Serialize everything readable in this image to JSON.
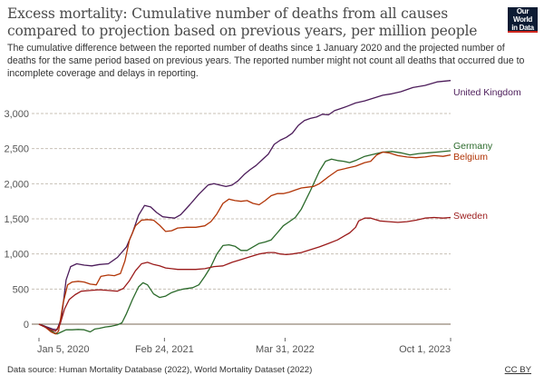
{
  "header": {
    "title": "Excess mortality: Cumulative number of deaths from all causes compared to projection based on previous years, per million people",
    "subtitle": "The cumulative difference between the reported number of deaths since 1 January 2020 and the projected number of deaths for the same period based on previous years. The reported number might not count all deaths that occurred due to incomplete coverage and delays in reporting.",
    "logo_line1": "Our World",
    "logo_line2": "in Data"
  },
  "footer": {
    "source": "Data source: Human Mortality Database (2022), World Mortality Dataset (2022)",
    "license": "CC BY"
  },
  "chart_data": {
    "type": "line",
    "title": "Excess mortality: Cumulative number of deaths from all causes compared to projection based on previous years, per million people",
    "xlabel": "",
    "ylabel": "",
    "x_unit": "days since Jan 5, 2020",
    "xlim": [
      0,
      1365
    ],
    "ylim": [
      -200,
      3000
    ],
    "yticks": [
      0,
      500,
      1000,
      1500,
      2000,
      2500,
      3000
    ],
    "ytick_labels": [
      "0",
      "500",
      "1,000",
      "1,500",
      "2,000",
      "2,500",
      "3,000"
    ],
    "xticks": [
      0,
      416,
      816,
      1365
    ],
    "xtick_labels": [
      "Jan 5, 2020",
      "Feb 24, 2021",
      "Mar 31, 2022",
      "Oct 1, 2023"
    ],
    "grid": "horizontal dashed",
    "legend": "line-end labels at right",
    "series": [
      {
        "name": "United Kingdom",
        "color": "#4c1c5a",
        "points": [
          [
            0,
            0
          ],
          [
            20,
            -30
          ],
          [
            45,
            -70
          ],
          [
            60,
            -80
          ],
          [
            75,
            100
          ],
          [
            90,
            630
          ],
          [
            105,
            820
          ],
          [
            125,
            860
          ],
          [
            150,
            840
          ],
          [
            175,
            830
          ],
          [
            200,
            850
          ],
          [
            230,
            860
          ],
          [
            260,
            950
          ],
          [
            290,
            1100
          ],
          [
            310,
            1300
          ],
          [
            330,
            1550
          ],
          [
            350,
            1690
          ],
          [
            370,
            1670
          ],
          [
            390,
            1590
          ],
          [
            410,
            1530
          ],
          [
            430,
            1520
          ],
          [
            450,
            1510
          ],
          [
            470,
            1560
          ],
          [
            500,
            1700
          ],
          [
            530,
            1850
          ],
          [
            560,
            1980
          ],
          [
            580,
            2000
          ],
          [
            600,
            1980
          ],
          [
            620,
            1960
          ],
          [
            640,
            1980
          ],
          [
            660,
            2040
          ],
          [
            680,
            2130
          ],
          [
            700,
            2200
          ],
          [
            720,
            2260
          ],
          [
            740,
            2340
          ],
          [
            760,
            2420
          ],
          [
            780,
            2560
          ],
          [
            800,
            2620
          ],
          [
            820,
            2660
          ],
          [
            840,
            2720
          ],
          [
            860,
            2830
          ],
          [
            880,
            2900
          ],
          [
            900,
            2930
          ],
          [
            920,
            2950
          ],
          [
            940,
            2990
          ],
          [
            960,
            2980
          ],
          [
            980,
            3040
          ],
          [
            1000,
            3070
          ],
          [
            1020,
            3100
          ],
          [
            1050,
            3150
          ],
          [
            1080,
            3180
          ],
          [
            1110,
            3220
          ],
          [
            1140,
            3260
          ],
          [
            1170,
            3280
          ],
          [
            1200,
            3310
          ],
          [
            1240,
            3370
          ],
          [
            1280,
            3400
          ],
          [
            1320,
            3450
          ],
          [
            1365,
            3470
          ]
        ]
      },
      {
        "name": "Germany",
        "color": "#2b6a2b",
        "points": [
          [
            0,
            0
          ],
          [
            30,
            -60
          ],
          [
            50,
            -120
          ],
          [
            60,
            -140
          ],
          [
            75,
            -110
          ],
          [
            90,
            -80
          ],
          [
            110,
            -80
          ],
          [
            130,
            -75
          ],
          [
            150,
            -80
          ],
          [
            170,
            -110
          ],
          [
            185,
            -70
          ],
          [
            200,
            -60
          ],
          [
            220,
            -40
          ],
          [
            240,
            -30
          ],
          [
            260,
            -10
          ],
          [
            275,
            20
          ],
          [
            290,
            150
          ],
          [
            310,
            350
          ],
          [
            330,
            530
          ],
          [
            345,
            590
          ],
          [
            360,
            560
          ],
          [
            380,
            430
          ],
          [
            400,
            380
          ],
          [
            420,
            400
          ],
          [
            440,
            450
          ],
          [
            460,
            480
          ],
          [
            480,
            500
          ],
          [
            510,
            520
          ],
          [
            530,
            560
          ],
          [
            550,
            680
          ],
          [
            570,
            820
          ],
          [
            590,
            1000
          ],
          [
            610,
            1120
          ],
          [
            630,
            1130
          ],
          [
            650,
            1110
          ],
          [
            670,
            1050
          ],
          [
            690,
            1050
          ],
          [
            710,
            1100
          ],
          [
            730,
            1150
          ],
          [
            750,
            1170
          ],
          [
            770,
            1200
          ],
          [
            790,
            1300
          ],
          [
            810,
            1400
          ],
          [
            830,
            1460
          ],
          [
            850,
            1520
          ],
          [
            870,
            1640
          ],
          [
            900,
            1900
          ],
          [
            930,
            2180
          ],
          [
            950,
            2320
          ],
          [
            970,
            2350
          ],
          [
            990,
            2330
          ],
          [
            1010,
            2320
          ],
          [
            1030,
            2300
          ],
          [
            1050,
            2330
          ],
          [
            1080,
            2390
          ],
          [
            1110,
            2420
          ],
          [
            1140,
            2450
          ],
          [
            1170,
            2460
          ],
          [
            1200,
            2440
          ],
          [
            1230,
            2410
          ],
          [
            1260,
            2430
          ],
          [
            1290,
            2440
          ],
          [
            1320,
            2450
          ],
          [
            1365,
            2470
          ]
        ]
      },
      {
        "name": "Belgium",
        "color": "#b13507",
        "points": [
          [
            0,
            0
          ],
          [
            20,
            -40
          ],
          [
            40,
            -110
          ],
          [
            55,
            -140
          ],
          [
            65,
            -100
          ],
          [
            80,
            300
          ],
          [
            95,
            560
          ],
          [
            110,
            600
          ],
          [
            130,
            610
          ],
          [
            150,
            600
          ],
          [
            170,
            570
          ],
          [
            190,
            560
          ],
          [
            205,
            680
          ],
          [
            230,
            700
          ],
          [
            250,
            690
          ],
          [
            270,
            720
          ],
          [
            285,
            900
          ],
          [
            300,
            1200
          ],
          [
            320,
            1400
          ],
          [
            340,
            1480
          ],
          [
            360,
            1490
          ],
          [
            380,
            1480
          ],
          [
            400,
            1410
          ],
          [
            420,
            1320
          ],
          [
            440,
            1330
          ],
          [
            460,
            1370
          ],
          [
            490,
            1380
          ],
          [
            520,
            1380
          ],
          [
            550,
            1400
          ],
          [
            570,
            1460
          ],
          [
            590,
            1570
          ],
          [
            610,
            1720
          ],
          [
            630,
            1780
          ],
          [
            650,
            1760
          ],
          [
            670,
            1750
          ],
          [
            690,
            1760
          ],
          [
            710,
            1720
          ],
          [
            730,
            1700
          ],
          [
            750,
            1760
          ],
          [
            770,
            1830
          ],
          [
            790,
            1860
          ],
          [
            810,
            1860
          ],
          [
            830,
            1880
          ],
          [
            850,
            1910
          ],
          [
            870,
            1940
          ],
          [
            890,
            1950
          ],
          [
            910,
            1960
          ],
          [
            930,
            2000
          ],
          [
            960,
            2100
          ],
          [
            990,
            2190
          ],
          [
            1020,
            2220
          ],
          [
            1050,
            2250
          ],
          [
            1080,
            2300
          ],
          [
            1100,
            2320
          ],
          [
            1120,
            2410
          ],
          [
            1140,
            2450
          ],
          [
            1160,
            2440
          ],
          [
            1190,
            2400
          ],
          [
            1220,
            2380
          ],
          [
            1250,
            2370
          ],
          [
            1280,
            2380
          ],
          [
            1310,
            2400
          ],
          [
            1340,
            2390
          ],
          [
            1365,
            2410
          ]
        ]
      },
      {
        "name": "Sweden",
        "color": "#9a1a1a",
        "points": [
          [
            0,
            0
          ],
          [
            20,
            -40
          ],
          [
            40,
            -80
          ],
          [
            55,
            -100
          ],
          [
            70,
            0
          ],
          [
            85,
            220
          ],
          [
            100,
            350
          ],
          [
            120,
            420
          ],
          [
            140,
            470
          ],
          [
            170,
            480
          ],
          [
            200,
            490
          ],
          [
            230,
            480
          ],
          [
            260,
            470
          ],
          [
            280,
            510
          ],
          [
            300,
            620
          ],
          [
            320,
            760
          ],
          [
            340,
            860
          ],
          [
            360,
            880
          ],
          [
            380,
            850
          ],
          [
            400,
            830
          ],
          [
            420,
            800
          ],
          [
            440,
            790
          ],
          [
            460,
            780
          ],
          [
            490,
            780
          ],
          [
            520,
            780
          ],
          [
            550,
            790
          ],
          [
            580,
            820
          ],
          [
            610,
            830
          ],
          [
            640,
            880
          ],
          [
            670,
            920
          ],
          [
            700,
            960
          ],
          [
            730,
            1000
          ],
          [
            760,
            1020
          ],
          [
            780,
            1020
          ],
          [
            800,
            1000
          ],
          [
            820,
            990
          ],
          [
            840,
            1000
          ],
          [
            870,
            1020
          ],
          [
            900,
            1060
          ],
          [
            930,
            1100
          ],
          [
            960,
            1150
          ],
          [
            990,
            1200
          ],
          [
            1010,
            1250
          ],
          [
            1030,
            1300
          ],
          [
            1050,
            1380
          ],
          [
            1060,
            1470
          ],
          [
            1080,
            1510
          ],
          [
            1100,
            1510
          ],
          [
            1130,
            1470
          ],
          [
            1160,
            1460
          ],
          [
            1190,
            1450
          ],
          [
            1220,
            1460
          ],
          [
            1250,
            1480
          ],
          [
            1280,
            1510
          ],
          [
            1310,
            1520
          ],
          [
            1340,
            1510
          ],
          [
            1365,
            1520
          ]
        ]
      }
    ]
  }
}
